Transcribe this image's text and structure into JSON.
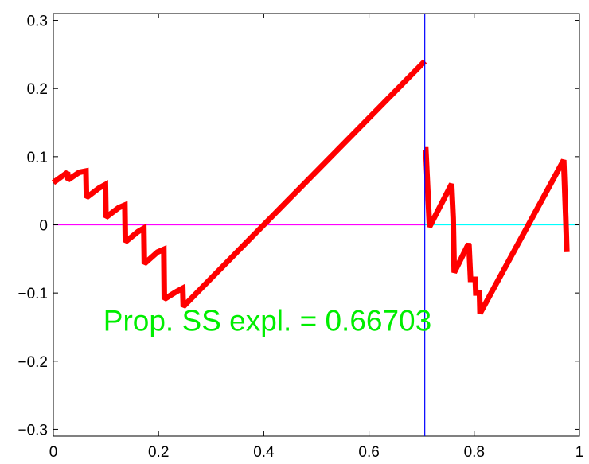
{
  "chart_data": {
    "type": "line",
    "title": "",
    "xlabel": "",
    "ylabel": "",
    "xlim": [
      0,
      1
    ],
    "ylim": [
      -0.31,
      0.31
    ],
    "x_ticks": [
      0,
      0.2,
      0.4,
      0.6,
      0.8,
      1
    ],
    "x_tick_labels": [
      "0",
      "0.2",
      "0.4",
      "0.6",
      "0.8",
      "1"
    ],
    "y_ticks": [
      -0.3,
      -0.2,
      -0.1,
      0,
      0.1,
      0.2,
      0.3
    ],
    "y_tick_labels": [
      "−0.3",
      "−0.2",
      "−0.1",
      "0",
      "0.1",
      "0.2",
      "0.3"
    ],
    "grid": false,
    "vertical_line": {
      "x": 0.706,
      "color": "#0000ff"
    },
    "baseline_segments": [
      {
        "x": [
          0,
          0.706
        ],
        "y": [
          0,
          0
        ],
        "color": "#ff00ff"
      },
      {
        "x": [
          0.706,
          1
        ],
        "y": [
          0,
          0
        ],
        "color": "#00ffff"
      }
    ],
    "series": [
      {
        "color": "#ff0000",
        "x": [
          0,
          0.018,
          0.027,
          0.028,
          0.049,
          0.062,
          0.063,
          0.087,
          0.099,
          0.1,
          0.124,
          0.136,
          0.137,
          0.161,
          0.172,
          0.173,
          0.198,
          0.21,
          0.211,
          0.234,
          0.246,
          0.247,
          0.706
        ],
        "y": [
          0.062,
          0.072,
          0.077,
          0.066,
          0.077,
          0.079,
          0.04,
          0.054,
          0.059,
          0.011,
          0.025,
          0.029,
          -0.025,
          -0.01,
          -0.005,
          -0.057,
          -0.04,
          -0.036,
          -0.109,
          -0.098,
          -0.093,
          -0.12,
          0.24
        ]
      },
      {
        "color": "#ff0000",
        "x": [
          0.706,
          0.708,
          0.715,
          0.757,
          0.76,
          0.762,
          0.789,
          0.79,
          0.793,
          0.801,
          0.802,
          0.803,
          0.81,
          0.811,
          0.97,
          0.974,
          0.976
        ],
        "y": [
          0.11,
          0.11,
          -0.003,
          0.06,
          0.01,
          -0.07,
          -0.028,
          -0.03,
          -0.08,
          -0.08,
          -0.08,
          -0.1,
          -0.1,
          -0.13,
          0.095,
          0.01,
          -0.04
        ]
      }
    ],
    "annotation": {
      "text": "Prop. SS expl. = 0.66703",
      "x": 0.095,
      "y": -0.14,
      "color": "#00ee00"
    }
  }
}
